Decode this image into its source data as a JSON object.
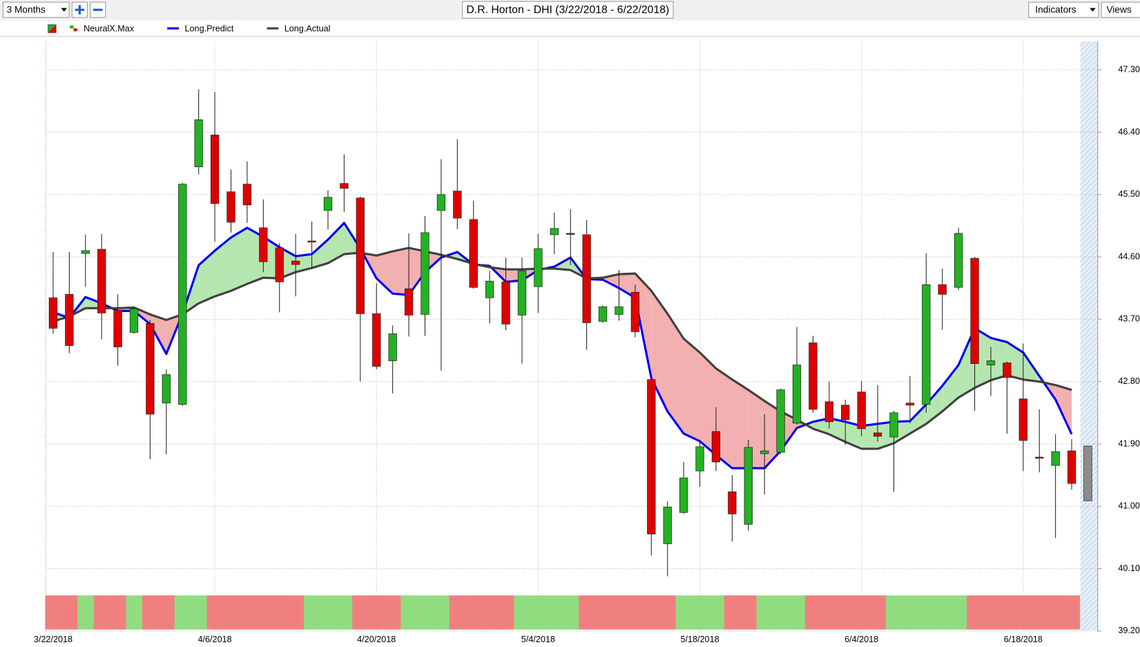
{
  "toolbar": {
    "range": "3 Months",
    "indicators": "Indicators",
    "views": "Views"
  },
  "chart_data": {
    "type": "candlestick",
    "title": "D.R. Horton - DHI (3/22/2018 - 6/22/2018)",
    "categories": [
      "3/22/2018",
      null,
      null,
      null,
      null,
      null,
      null,
      null,
      null,
      null,
      "4/6/2018",
      null,
      null,
      null,
      null,
      null,
      null,
      null,
      null,
      null,
      "4/20/2018",
      null,
      null,
      null,
      null,
      null,
      null,
      null,
      null,
      null,
      "5/4/2018",
      null,
      null,
      null,
      null,
      null,
      null,
      null,
      null,
      null,
      "5/18/2018",
      null,
      null,
      null,
      null,
      null,
      null,
      null,
      null,
      null,
      "6/4/2018",
      null,
      null,
      null,
      null,
      null,
      null,
      null,
      null,
      null,
      "6/18/2018",
      null,
      null,
      null,
      null
    ],
    "open": [
      44.01,
      44.06,
      44.65,
      44.71,
      43.83,
      43.51,
      43.64,
      42.49,
      42.47,
      45.9,
      46.36,
      45.54,
      45.65,
      45.02,
      44.73,
      44.54,
      44.83,
      45.27,
      45.66,
      45.45,
      43.78,
      43.1,
      44.14,
      43.77,
      45.27,
      45.55,
      45.14,
      44.01,
      44.24,
      43.76,
      44.17,
      44.92,
      44.94,
      44.92,
      43.67,
      43.77,
      44.09,
      42.83,
      40.46,
      40.91,
      41.51,
      42.08,
      41.21,
      40.74,
      41.76,
      41.78,
      42.2,
      43.36,
      42.51,
      42.46,
      42.65,
      42.06,
      42.0,
      42.49,
      42.47,
      44.2,
      44.16,
      44.58,
      43.04,
      43.07,
      42.55,
      41.71,
      41.59,
      41.8,
      41.87
    ],
    "high": [
      44.67,
      44.67,
      44.92,
      44.93,
      44.06,
      43.88,
      43.69,
      42.98,
      45.67,
      47.02,
      46.98,
      45.86,
      45.98,
      45.43,
      44.8,
      44.93,
      45.11,
      45.56,
      46.08,
      45.47,
      44.22,
      43.61,
      44.94,
      45.19,
      46.01,
      46.3,
      45.41,
      44.4,
      44.59,
      44.59,
      44.93,
      45.24,
      45.29,
      45.13,
      43.9,
      44.41,
      44.2,
      42.85,
      41.07,
      41.64,
      41.96,
      42.43,
      41.45,
      41.96,
      42.33,
      42.7,
      43.59,
      43.46,
      42.8,
      42.54,
      42.81,
      42.75,
      42.38,
      42.88,
      44.65,
      44.43,
      45.02,
      44.6,
      43.3,
      43.09,
      43.35,
      42.4,
      42.04,
      41.97,
      41.87
    ],
    "low": [
      43.49,
      43.21,
      44.17,
      43.41,
      43.03,
      43.49,
      41.68,
      41.75,
      42.45,
      45.79,
      44.82,
      44.95,
      45.09,
      44.38,
      43.8,
      44.03,
      44.43,
      45.0,
      45.25,
      42.8,
      42.98,
      42.63,
      43.45,
      43.46,
      42.96,
      45.0,
      44.14,
      43.64,
      43.54,
      43.06,
      43.79,
      44.64,
      44.48,
      43.26,
      43.65,
      43.68,
      43.44,
      40.29,
      39.99,
      40.89,
      41.28,
      41.51,
      40.49,
      40.65,
      41.17,
      41.75,
      42.18,
      42.35,
      42.12,
      41.89,
      42.01,
      41.93,
      41.21,
      42.2,
      42.35,
      43.55,
      44.12,
      42.38,
      42.59,
      42.05,
      41.51,
      41.49,
      40.54,
      41.24,
      41.08
    ],
    "close": [
      43.57,
      43.32,
      44.69,
      43.79,
      43.3,
      43.85,
      42.33,
      42.9,
      45.65,
      46.58,
      45.37,
      45.1,
      45.35,
      44.53,
      44.24,
      44.49,
      44.82,
      45.46,
      45.59,
      43.78,
      43.02,
      43.49,
      43.76,
      44.95,
      45.5,
      45.16,
      44.16,
      44.25,
      43.63,
      44.4,
      44.72,
      45.01,
      44.93,
      43.65,
      43.88,
      43.88,
      43.52,
      40.6,
      40.99,
      41.41,
      41.86,
      41.64,
      40.89,
      41.85,
      41.8,
      42.68,
      43.04,
      42.4,
      42.22,
      42.25,
      42.12,
      42.01,
      42.35,
      42.46,
      44.2,
      44.06,
      44.94,
      43.06,
      43.1,
      42.86,
      41.95,
      41.7,
      41.79,
      41.33,
      41.08
    ],
    "up_color": "#22b222",
    "down_color": "#e00000",
    "last_color": "#8c8c8c",
    "series": [
      {
        "name": "Long.Predict",
        "color": "#0000ee",
        "values": [
          43.8,
          43.72,
          44.02,
          43.93,
          43.82,
          43.82,
          43.63,
          43.2,
          43.78,
          44.48,
          44.69,
          44.88,
          45.02,
          44.89,
          44.74,
          44.61,
          44.64,
          44.85,
          45.09,
          44.72,
          44.29,
          44.07,
          44.05,
          44.38,
          44.59,
          44.67,
          44.49,
          44.47,
          44.24,
          44.26,
          44.41,
          44.46,
          44.59,
          44.28,
          44.27,
          44.15,
          44.01,
          42.85,
          42.37,
          42.05,
          41.94,
          41.74,
          41.55,
          41.55,
          41.55,
          41.8,
          42.13,
          42.22,
          42.27,
          42.22,
          42.16,
          42.19,
          42.22,
          42.23,
          42.47,
          42.74,
          43.04,
          43.57,
          43.43,
          43.37,
          43.22,
          42.88,
          42.54,
          42.04,
          null
        ]
      },
      {
        "name": "Long.Actual",
        "color": "#404040",
        "values": [
          43.67,
          43.74,
          43.86,
          43.86,
          43.86,
          43.87,
          43.77,
          43.69,
          43.77,
          43.93,
          44.03,
          44.11,
          44.21,
          44.3,
          44.29,
          44.38,
          44.44,
          44.51,
          44.64,
          44.66,
          44.62,
          44.68,
          44.73,
          44.68,
          44.63,
          44.57,
          44.5,
          44.45,
          44.42,
          44.42,
          44.43,
          44.43,
          44.41,
          44.29,
          44.3,
          44.35,
          44.36,
          44.11,
          43.78,
          43.42,
          43.22,
          42.99,
          42.83,
          42.68,
          42.52,
          42.37,
          42.25,
          42.12,
          42.04,
          41.93,
          41.83,
          41.83,
          41.91,
          42.05,
          42.19,
          42.37,
          42.57,
          42.71,
          42.82,
          42.89,
          42.83,
          42.8,
          42.75,
          42.68,
          null
        ]
      }
    ],
    "signal": {
      "name": "NeuralX.Max",
      "up_color": "#90dd80",
      "down_color": "#f08080",
      "values": [
        -1,
        -1,
        1,
        -1,
        -1,
        1,
        -1,
        -1,
        1,
        1,
        -1,
        -1,
        -1,
        -1,
        -1,
        -1,
        1,
        1,
        1,
        -1,
        -1,
        -1,
        1,
        1,
        1,
        -1,
        -1,
        -1,
        -1,
        1,
        1,
        1,
        1,
        -1,
        -1,
        -1,
        -1,
        -1,
        -1,
        1,
        1,
        1,
        -1,
        -1,
        1,
        1,
        1,
        -1,
        -1,
        -1,
        -1,
        -1,
        1,
        1,
        1,
        1,
        1,
        -1,
        -1,
        -1,
        -1,
        -1,
        -1,
        -1,
        null
      ]
    },
    "fill_up_color": "#b5e6b0",
    "fill_down_color": "#f2b0b0",
    "ylim": [
      39.2,
      47.71
    ],
    "yticks": [
      {
        "value": 47.3,
        "label": "47.30"
      },
      {
        "value": 46.4,
        "label": "46.40"
      },
      {
        "value": 45.5,
        "label": "45.50"
      },
      {
        "value": 44.6,
        "label": "44.60"
      },
      {
        "value": 43.7,
        "label": "43.70"
      },
      {
        "value": 42.8,
        "label": "42.80"
      },
      {
        "value": 41.9,
        "label": "41.90"
      },
      {
        "value": 41,
        "label": "41.00"
      },
      {
        "value": 40.1,
        "label": "40.10"
      },
      {
        "value": 39.2,
        "label": "39.20"
      }
    ],
    "grid": true
  }
}
